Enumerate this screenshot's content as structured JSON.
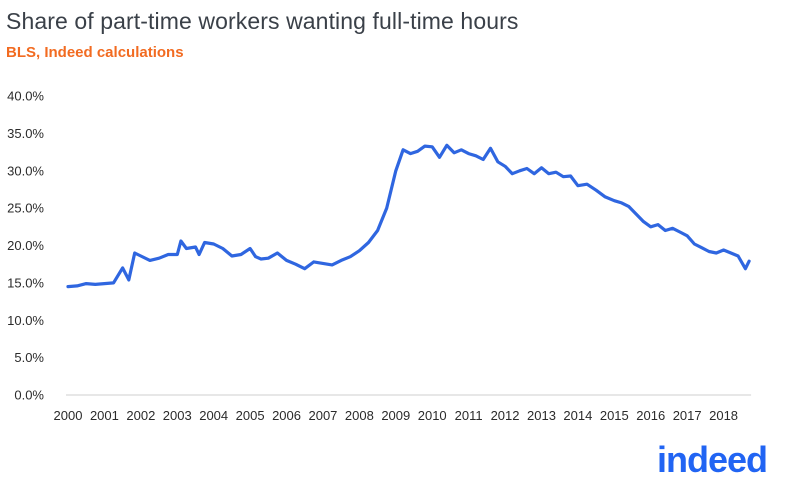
{
  "chart_data": {
    "type": "line",
    "title": "Share of part-time workers wanting full-time hours",
    "subtitle": "BLS, Indeed  calculations",
    "xlabel": "",
    "ylabel": "",
    "x_tick_labels": [
      "2000",
      "2001",
      "2002",
      "2003",
      "2004",
      "2005",
      "2006",
      "2007",
      "2008",
      "2009",
      "2010",
      "2011",
      "2012",
      "2013",
      "2014",
      "2015",
      "2016",
      "2017",
      "2018"
    ],
    "y_tick_labels": [
      "0.0%",
      "5.0%",
      "10.0%",
      "15.0%",
      "20.0%",
      "25.0%",
      "30.0%",
      "35.0%",
      "40.0%"
    ],
    "xlim": [
      2000.0,
      2019.0
    ],
    "ylim": [
      0,
      40
    ],
    "grid": false,
    "color": "#2f66e0",
    "series": [
      {
        "x": [
          2000.0,
          2000.25,
          2000.5,
          2000.75,
          2001.0,
          2001.25,
          2001.5,
          2001.67,
          2001.83,
          2002.0,
          2002.25,
          2002.5,
          2002.75,
          2003.0,
          2003.1,
          2003.25,
          2003.5,
          2003.6,
          2003.75,
          2004.0,
          2004.25,
          2004.5,
          2004.75,
          2005.0,
          2005.15,
          2005.3,
          2005.5,
          2005.75,
          2006.0,
          2006.25,
          2006.5,
          2006.75,
          2007.0,
          2007.25,
          2007.5,
          2007.75,
          2008.0,
          2008.25,
          2008.5,
          2008.75,
          2009.0,
          2009.2,
          2009.4,
          2009.6,
          2009.8,
          2010.0,
          2010.2,
          2010.4,
          2010.6,
          2010.8,
          2011.0,
          2011.2,
          2011.4,
          2011.6,
          2011.8,
          2012.0,
          2012.2,
          2012.4,
          2012.6,
          2012.8,
          2013.0,
          2013.2,
          2013.4,
          2013.6,
          2013.8,
          2014.0,
          2014.25,
          2014.5,
          2014.75,
          2015.0,
          2015.2,
          2015.4,
          2015.6,
          2015.8,
          2016.0,
          2016.2,
          2016.4,
          2016.6,
          2016.8,
          2017.0,
          2017.2,
          2017.4,
          2017.6,
          2017.8,
          2018.0,
          2018.2,
          2018.4,
          2018.6,
          2018.7
        ],
        "y": [
          14.5,
          14.6,
          14.9,
          14.8,
          14.9,
          15.0,
          17.0,
          15.4,
          19.0,
          18.6,
          18.0,
          18.3,
          18.8,
          18.8,
          20.6,
          19.6,
          19.8,
          18.8,
          20.4,
          20.2,
          19.6,
          18.6,
          18.8,
          19.6,
          18.5,
          18.2,
          18.3,
          19.0,
          18.0,
          17.5,
          16.9,
          17.8,
          17.6,
          17.4,
          18.0,
          18.5,
          19.3,
          20.4,
          22.0,
          25.0,
          30.0,
          32.8,
          32.3,
          32.6,
          33.3,
          33.2,
          31.8,
          33.4,
          32.4,
          32.8,
          32.3,
          32.0,
          31.5,
          33.0,
          31.2,
          30.6,
          29.6,
          30.0,
          30.3,
          29.6,
          30.4,
          29.6,
          29.8,
          29.2,
          29.3,
          28.0,
          28.2,
          27.4,
          26.5,
          26.0,
          25.7,
          25.2,
          24.2,
          23.2,
          22.5,
          22.8,
          22.0,
          22.3,
          21.8,
          21.3,
          20.2,
          19.7,
          19.2,
          19.0,
          19.4,
          19.0,
          18.6,
          16.9,
          17.9
        ]
      }
    ]
  },
  "logo_text": "indeed"
}
